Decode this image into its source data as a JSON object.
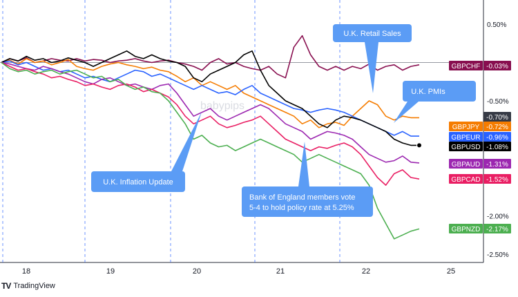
{
  "chart_data": {
    "type": "line",
    "title": "",
    "xlabel": "",
    "ylabel": "",
    "x_ticks": [
      "18",
      "19",
      "20",
      "21",
      "22",
      "25"
    ],
    "y_ticks": [
      "0.50%",
      "-0.50%",
      "-2.00%",
      "-2.50%"
    ],
    "ylim": [
      -2.6,
      0.62
    ],
    "grid": "vertical dashed session lines",
    "legend": "right-side price labels",
    "series": [
      {
        "name": "GBPCHF",
        "last": "-0.03%",
        "color": "#880e4f",
        "values": [
          0.0,
          0.05,
          0.02,
          0.06,
          0.0,
          0.02,
          0.05,
          0.03,
          0.02,
          0.05,
          0.02,
          0.04,
          0.03,
          0.0,
          0.02,
          0.03,
          0.05,
          0.02,
          0.0,
          0.02,
          0.03,
          0.0,
          -0.02,
          -0.05,
          -0.1,
          0.0,
          0.05,
          -0.02,
          0.0,
          -0.05,
          -0.08,
          -0.1,
          -0.05,
          -0.15,
          -0.2,
          0.2,
          0.35,
          0.1,
          -0.05,
          -0.1,
          -0.05,
          -0.1,
          -0.05,
          -0.08,
          -0.02,
          -0.1,
          -0.05,
          -0.03,
          -0.1,
          -0.05,
          -0.03
        ]
      },
      {
        "name": "GBPJPY",
        "last": "-0.72%",
        "color": "#f57c00",
        "values": [
          0.0,
          0.03,
          -0.02,
          0.05,
          0.0,
          0.02,
          -0.03,
          0.0,
          0.04,
          -0.05,
          -0.08,
          -0.1,
          -0.05,
          -0.02,
          0.0,
          -0.03,
          -0.05,
          -0.08,
          -0.06,
          -0.1,
          -0.12,
          -0.18,
          -0.25,
          -0.2,
          -0.3,
          -0.25,
          -0.3,
          -0.35,
          -0.3,
          -0.4,
          -0.45,
          -0.5,
          -0.55,
          -0.6,
          -0.65,
          -0.7,
          -0.8,
          -0.75,
          -0.85,
          -0.8,
          -0.78,
          -0.82,
          -0.7,
          -0.6,
          -0.5,
          -0.55,
          -0.7,
          -0.75,
          -0.7,
          -0.72,
          -0.72
        ]
      },
      {
        "name": "GBPEUR",
        "last": "-0.96%",
        "color": "#2962ff",
        "values": [
          0.0,
          0.02,
          -0.03,
          0.0,
          -0.05,
          -0.1,
          -0.08,
          -0.12,
          -0.1,
          -0.15,
          -0.2,
          -0.18,
          -0.22,
          -0.25,
          -0.2,
          -0.15,
          -0.1,
          -0.12,
          -0.18,
          -0.15,
          -0.2,
          -0.25,
          -0.3,
          -0.35,
          -0.3,
          -0.35,
          -0.4,
          -0.38,
          -0.42,
          -0.35,
          -0.3,
          -0.4,
          -0.45,
          -0.5,
          -0.55,
          -0.6,
          -0.62,
          -0.65,
          -0.62,
          -0.6,
          -0.62,
          -0.65,
          -0.7,
          -0.75,
          -0.8,
          -0.85,
          -0.9,
          -0.95,
          -0.9,
          -0.96,
          -0.96
        ]
      },
      {
        "name": "GBPUSD",
        "last": "-1.08%",
        "color": "#000000",
        "values": [
          0.0,
          0.05,
          0.02,
          0.08,
          0.03,
          0.05,
          0.0,
          0.02,
          0.06,
          0.03,
          0.0,
          -0.05,
          0.0,
          0.05,
          0.1,
          0.15,
          0.08,
          0.05,
          0.1,
          0.05,
          0.02,
          0.0,
          -0.05,
          -0.2,
          -0.25,
          -0.15,
          -0.1,
          -0.05,
          0.0,
          0.1,
          0.15,
          -0.1,
          -0.3,
          -0.4,
          -0.5,
          -0.55,
          -0.6,
          -0.7,
          -0.8,
          -0.85,
          -0.75,
          -0.7,
          -0.72,
          -0.75,
          -0.8,
          -0.85,
          -0.9,
          -1.0,
          -1.05,
          -1.08,
          -1.08
        ]
      },
      {
        "name": "GBPAUD",
        "last": "-1.31%",
        "color": "#9c27b0",
        "values": [
          0.0,
          -0.02,
          -0.05,
          -0.08,
          -0.1,
          -0.05,
          -0.08,
          -0.12,
          -0.15,
          -0.2,
          -0.25,
          -0.28,
          -0.22,
          -0.2,
          -0.25,
          -0.3,
          -0.28,
          -0.32,
          -0.35,
          -0.3,
          -0.28,
          -0.4,
          -0.55,
          -0.7,
          -0.65,
          -0.6,
          -0.7,
          -0.75,
          -0.7,
          -0.65,
          -0.6,
          -0.55,
          -0.6,
          -0.7,
          -0.8,
          -0.85,
          -0.9,
          -1.0,
          -0.95,
          -0.9,
          -0.92,
          -0.95,
          -1.0,
          -1.1,
          -1.2,
          -1.25,
          -1.3,
          -1.28,
          -1.22,
          -1.3,
          -1.31
        ]
      },
      {
        "name": "GBPCAD",
        "last": "-1.52%",
        "color": "#e91e63",
        "values": [
          0.0,
          -0.05,
          -0.1,
          -0.08,
          -0.12,
          -0.15,
          -0.2,
          -0.18,
          -0.22,
          -0.25,
          -0.3,
          -0.28,
          -0.32,
          -0.35,
          -0.3,
          -0.28,
          -0.32,
          -0.38,
          -0.35,
          -0.4,
          -0.45,
          -0.55,
          -0.7,
          -0.8,
          -0.75,
          -0.7,
          -0.8,
          -0.85,
          -0.82,
          -0.78,
          -0.75,
          -0.7,
          -0.8,
          -0.9,
          -1.0,
          -1.05,
          -1.1,
          -1.15,
          -1.1,
          -1.12,
          -1.08,
          -1.05,
          -1.1,
          -1.2,
          -1.35,
          -1.5,
          -1.6,
          -1.45,
          -1.4,
          -1.5,
          -1.52
        ]
      },
      {
        "name": "GBPNZD",
        "last": "-2.17%",
        "color": "#4caf50",
        "values": [
          0.0,
          -0.08,
          -0.12,
          -0.1,
          -0.15,
          -0.12,
          -0.1,
          -0.15,
          -0.12,
          -0.1,
          -0.15,
          -0.2,
          -0.18,
          -0.25,
          -0.22,
          -0.3,
          -0.35,
          -0.32,
          -0.38,
          -0.4,
          -0.5,
          -0.65,
          -0.8,
          -1.0,
          -0.95,
          -1.05,
          -1.1,
          -1.08,
          -1.15,
          -1.1,
          -1.05,
          -1.0,
          -1.05,
          -1.1,
          -1.15,
          -1.2,
          -1.3,
          -1.25,
          -1.2,
          -1.25,
          -1.3,
          -1.35,
          -1.4,
          -1.45,
          -1.6,
          -1.9,
          -2.1,
          -2.3,
          -2.25,
          -2.2,
          -2.17
        ]
      }
    ],
    "extra_price_label": {
      "text": "-0.70%",
      "color": "#363a45"
    },
    "annotations": [
      {
        "text": "U.K. Retail Sales"
      },
      {
        "text": "U.K. PMIs"
      },
      {
        "text": "U.K. Inflation Update"
      },
      {
        "text": "Bank of England members vote\n5-4 to hold policy rate at 5.25%"
      }
    ],
    "watermark": "babypips"
  },
  "footer": {
    "brand": "TradingView",
    "logo": "TV"
  }
}
